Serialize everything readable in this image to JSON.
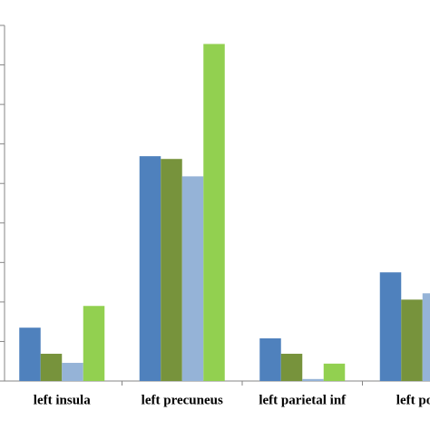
{
  "chart_data": {
    "type": "bar",
    "categories": [
      "left insula",
      "left precuneus",
      "left parietal inf",
      "left postc"
    ],
    "series": [
      {
        "color": "#4f81bd",
        "values": [
          1.35,
          5.69,
          1.08,
          2.75
        ]
      },
      {
        "color": "#77933c",
        "values": [
          0.69,
          5.62,
          0.69,
          2.06
        ]
      },
      {
        "color": "#95b3d7",
        "values": [
          0.46,
          5.18,
          0.05,
          2.22
        ]
      },
      {
        "color": "#92d050",
        "values": [
          1.9,
          8.53,
          0.44,
          null
        ]
      }
    ],
    "ylim": [
      0,
      9
    ],
    "yticks": [
      0,
      1,
      2,
      3,
      4,
      5,
      6,
      7,
      8,
      9
    ],
    "grid": false
  }
}
